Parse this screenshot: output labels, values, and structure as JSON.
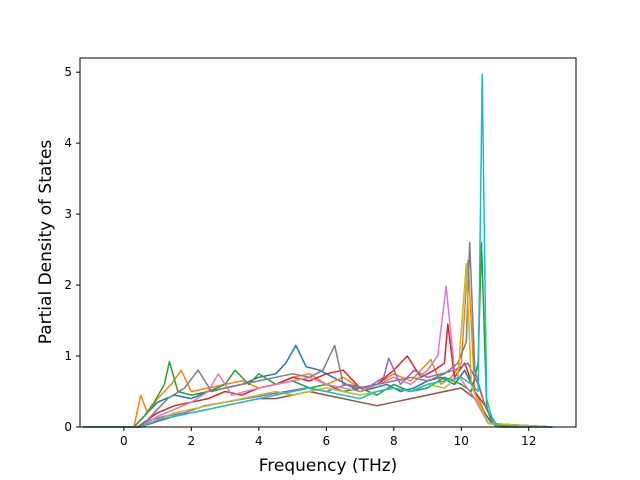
{
  "chart_data": {
    "type": "line",
    "title": "",
    "xlabel": "Frequency (THz)",
    "ylabel": "Partial Density of States",
    "xlim": [
      -1.3,
      13.4
    ],
    "ylim": [
      0,
      5.2
    ],
    "xticks": [
      0,
      2,
      4,
      6,
      8,
      10,
      12
    ],
    "yticks": [
      0,
      1,
      2,
      3,
      4,
      5
    ],
    "grid": false,
    "legend": "none",
    "note_series": "many overlapping partial DOS curves (matplotlib tab10 colors); values approximated from the image",
    "colors": [
      "#1f77b4",
      "#ff7f0e",
      "#2ca02c",
      "#d62728",
      "#9467bd",
      "#8c564b",
      "#e377c2",
      "#7f7f7f",
      "#bcbd22",
      "#17becf"
    ],
    "series": [
      {
        "color": "#1f77b4",
        "x": [
          -1.2,
          0.0,
          0.3,
          0.5,
          0.7,
          1.0,
          1.5,
          2.0,
          2.5,
          3.0,
          3.5,
          4.0,
          4.5,
          4.8,
          5.1,
          5.4,
          5.8,
          6.2,
          6.6,
          7.0,
          7.4,
          7.8,
          8.2,
          8.6,
          9.0,
          9.4,
          9.8,
          10.1,
          10.4,
          10.7,
          10.9,
          11.2,
          12.7
        ],
        "y": [
          0,
          0,
          0,
          0.1,
          0.2,
          0.35,
          0.45,
          0.4,
          0.5,
          0.55,
          0.6,
          0.7,
          0.75,
          0.9,
          1.15,
          0.85,
          0.8,
          0.7,
          0.6,
          0.5,
          0.55,
          0.6,
          0.5,
          0.55,
          0.65,
          0.7,
          0.6,
          0.8,
          0.5,
          0.2,
          0.05,
          0,
          0
        ]
      },
      {
        "color": "#ff7f0e",
        "x": [
          -1.2,
          0.3,
          0.5,
          0.7,
          1.0,
          1.4,
          1.7,
          2.0,
          2.5,
          3.0,
          3.5,
          4.0,
          4.5,
          5.0,
          5.5,
          6.0,
          6.5,
          7.0,
          7.5,
          8.0,
          8.5,
          8.8,
          9.1,
          9.4,
          9.7,
          10.0,
          10.2,
          10.4,
          10.6,
          10.8,
          12.7
        ],
        "y": [
          0,
          0,
          0.45,
          0.2,
          0.4,
          0.6,
          0.8,
          0.5,
          0.55,
          0.6,
          0.65,
          0.55,
          0.6,
          0.7,
          0.75,
          0.6,
          0.7,
          0.55,
          0.6,
          0.75,
          0.65,
          0.8,
          0.95,
          0.6,
          0.7,
          0.9,
          2.35,
          0.5,
          0.3,
          0.05,
          0
        ]
      },
      {
        "color": "#2ca02c",
        "x": [
          -1.2,
          0.3,
          0.6,
          0.9,
          1.2,
          1.35,
          1.6,
          2.0,
          2.5,
          3.0,
          3.3,
          3.7,
          4.0,
          4.5,
          5.0,
          5.5,
          6.0,
          6.5,
          7.0,
          7.5,
          8.0,
          8.5,
          9.0,
          9.5,
          10.0,
          10.3,
          10.5,
          10.6,
          10.75,
          10.9,
          12.7
        ],
        "y": [
          0,
          0,
          0.15,
          0.35,
          0.6,
          0.92,
          0.5,
          0.45,
          0.5,
          0.6,
          0.8,
          0.6,
          0.75,
          0.6,
          0.65,
          0.55,
          0.6,
          0.5,
          0.55,
          0.45,
          0.6,
          0.5,
          0.55,
          0.7,
          0.6,
          0.5,
          0.9,
          2.6,
          0.3,
          0.05,
          0
        ]
      },
      {
        "color": "#d62728",
        "x": [
          -1.2,
          0.4,
          0.7,
          1.0,
          1.5,
          2.0,
          2.5,
          3.0,
          3.5,
          4.0,
          4.5,
          5.0,
          5.5,
          6.0,
          6.5,
          7.0,
          7.5,
          8.0,
          8.4,
          8.8,
          9.2,
          9.5,
          9.6,
          9.8,
          10.1,
          10.4,
          10.7,
          11.0,
          12.7
        ],
        "y": [
          0,
          0,
          0.1,
          0.2,
          0.3,
          0.35,
          0.4,
          0.5,
          0.45,
          0.55,
          0.6,
          0.7,
          0.65,
          0.75,
          0.8,
          0.55,
          0.6,
          0.8,
          1.0,
          0.7,
          0.8,
          0.9,
          1.45,
          0.7,
          0.9,
          0.5,
          0.3,
          0.02,
          0
        ]
      },
      {
        "color": "#9467bd",
        "x": [
          -1.2,
          0.4,
          0.8,
          1.2,
          1.8,
          2.4,
          3.0,
          3.6,
          4.2,
          4.8,
          5.4,
          6.0,
          6.6,
          7.2,
          7.7,
          7.85,
          8.2,
          8.6,
          9.0,
          9.4,
          9.8,
          10.2,
          10.5,
          10.7,
          11.0,
          12.7
        ],
        "y": [
          0,
          0,
          0.1,
          0.15,
          0.2,
          0.3,
          0.35,
          0.4,
          0.45,
          0.5,
          0.55,
          0.5,
          0.6,
          0.55,
          0.7,
          0.97,
          0.6,
          0.8,
          0.7,
          0.75,
          0.8,
          0.9,
          0.6,
          0.3,
          0.02,
          0
        ]
      },
      {
        "color": "#8c564b",
        "x": [
          -1.2,
          0.5,
          1.0,
          1.5,
          2.0,
          2.5,
          3.0,
          3.5,
          4.0,
          4.5,
          5.0,
          5.5,
          6.0,
          6.5,
          7.0,
          7.5,
          8.0,
          8.5,
          9.0,
          9.5,
          10.0,
          10.4,
          10.8,
          12.7
        ],
        "y": [
          0,
          0,
          0.08,
          0.15,
          0.2,
          0.25,
          0.3,
          0.35,
          0.4,
          0.4,
          0.45,
          0.5,
          0.45,
          0.4,
          0.35,
          0.3,
          0.35,
          0.4,
          0.45,
          0.5,
          0.55,
          0.4,
          0.05,
          0
        ]
      },
      {
        "color": "#e377c2",
        "x": [
          -1.2,
          0.5,
          1.0,
          1.5,
          2.0,
          2.5,
          2.8,
          3.2,
          3.6,
          4.0,
          4.5,
          5.0,
          5.5,
          6.0,
          6.5,
          7.0,
          7.5,
          8.0,
          8.5,
          9.0,
          9.3,
          9.55,
          9.8,
          10.1,
          10.4,
          10.8,
          12.7
        ],
        "y": [
          0,
          0,
          0.15,
          0.25,
          0.35,
          0.5,
          0.75,
          0.45,
          0.5,
          0.55,
          0.6,
          0.65,
          0.7,
          0.6,
          0.55,
          0.5,
          0.6,
          0.7,
          0.6,
          0.8,
          1.0,
          1.98,
          0.8,
          0.6,
          0.4,
          0.05,
          0
        ]
      },
      {
        "color": "#7f7f7f",
        "x": [
          -1.2,
          0.5,
          0.9,
          1.3,
          1.8,
          2.2,
          2.6,
          3.0,
          3.5,
          4.0,
          4.5,
          5.0,
          5.5,
          5.9,
          6.25,
          6.5,
          7.0,
          7.5,
          8.0,
          8.5,
          9.0,
          9.5,
          9.9,
          10.15,
          10.25,
          10.4,
          10.7,
          11.0,
          12.7
        ],
        "y": [
          0,
          0,
          0.2,
          0.4,
          0.55,
          0.8,
          0.5,
          0.55,
          0.6,
          0.65,
          0.7,
          0.75,
          0.7,
          0.8,
          1.15,
          0.6,
          0.55,
          0.6,
          0.65,
          0.7,
          0.65,
          0.75,
          0.9,
          1.2,
          2.6,
          0.8,
          0.3,
          0.02,
          0
        ]
      },
      {
        "color": "#bcbd22",
        "x": [
          -1.2,
          0.5,
          1.0,
          1.5,
          2.0,
          2.5,
          3.0,
          3.5,
          4.0,
          4.5,
          5.0,
          5.5,
          6.0,
          6.5,
          7.0,
          7.5,
          8.0,
          8.5,
          9.0,
          9.5,
          9.9,
          10.15,
          10.3,
          10.5,
          10.8,
          12.7
        ],
        "y": [
          0,
          0,
          0.1,
          0.2,
          0.25,
          0.3,
          0.35,
          0.4,
          0.45,
          0.5,
          0.45,
          0.5,
          0.55,
          0.5,
          0.45,
          0.5,
          0.55,
          0.5,
          0.6,
          0.55,
          0.7,
          2.3,
          0.6,
          0.35,
          0.05,
          0
        ]
      },
      {
        "color": "#17becf",
        "x": [
          -1.2,
          0.5,
          1.0,
          1.5,
          2.0,
          2.5,
          3.0,
          3.5,
          4.0,
          4.5,
          5.0,
          5.5,
          6.0,
          6.5,
          7.0,
          7.5,
          8.0,
          8.5,
          9.0,
          9.5,
          10.0,
          10.3,
          10.5,
          10.62,
          10.75,
          10.9,
          11.1,
          12.7
        ],
        "y": [
          0,
          0,
          0.1,
          0.15,
          0.2,
          0.25,
          0.3,
          0.35,
          0.4,
          0.45,
          0.5,
          0.55,
          0.5,
          0.45,
          0.4,
          0.5,
          0.55,
          0.5,
          0.6,
          0.65,
          0.7,
          0.6,
          0.5,
          4.97,
          0.4,
          0.15,
          0,
          0
        ]
      }
    ]
  }
}
